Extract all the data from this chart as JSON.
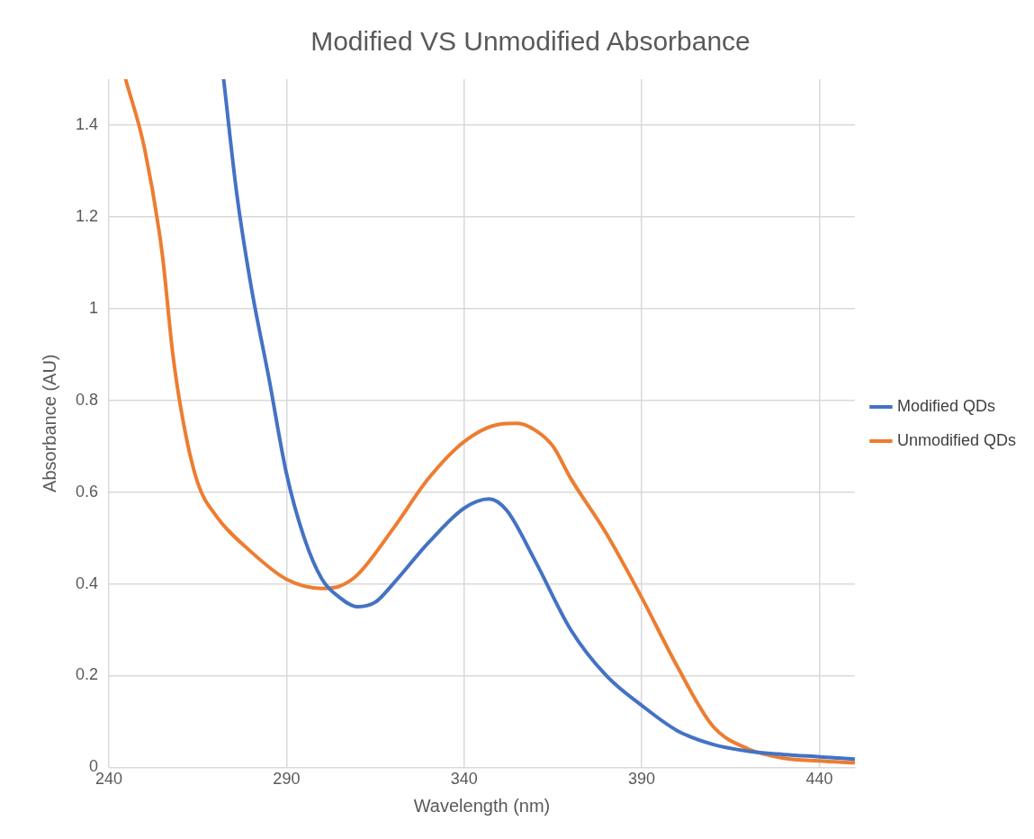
{
  "chart_data": {
    "type": "line",
    "title": "Modified VS Unmodified Absorbance",
    "xlabel": "Wavelength (nm)",
    "ylabel": "Absorbance (AU)",
    "xlim": [
      240,
      450
    ],
    "xticks": [
      240,
      290,
      340,
      390,
      440
    ],
    "ylim": [
      0,
      1.5
    ],
    "yticks": [
      0,
      0.2,
      0.4,
      0.6,
      0.8,
      1,
      1.2,
      1.4
    ],
    "grid": true,
    "legend": "right",
    "marker": "none",
    "line_style": "solid",
    "series": [
      {
        "name": "Modified QDs",
        "color": "#4472c4",
        "x": [
          272.3,
          276,
          280,
          285,
          290,
          295,
          300,
          305,
          310,
          315,
          320,
          330,
          340,
          347,
          352,
          360,
          370,
          380,
          390,
          400,
          410,
          420,
          430,
          440,
          450
        ],
        "values": [
          1.5,
          1.25,
          1.05,
          0.85,
          0.64,
          0.5,
          0.41,
          0.37,
          0.35,
          0.36,
          0.4,
          0.49,
          0.565,
          0.585,
          0.56,
          0.45,
          0.3,
          0.2,
          0.135,
          0.08,
          0.05,
          0.035,
          0.028,
          0.023,
          0.018
        ]
      },
      {
        "name": "Unmodified QDs",
        "color": "#ed7d31",
        "x": [
          244.7,
          250,
          255,
          258,
          261,
          265,
          270,
          280,
          290,
          300,
          305,
          310,
          320,
          330,
          340,
          350,
          355,
          360,
          365,
          370,
          380,
          390,
          400,
          410,
          420,
          430,
          440,
          450
        ],
        "values": [
          1.5,
          1.35,
          1.12,
          0.9,
          0.75,
          0.62,
          0.55,
          0.47,
          0.41,
          0.39,
          0.395,
          0.42,
          0.52,
          0.63,
          0.71,
          0.748,
          0.75,
          0.735,
          0.7,
          0.63,
          0.51,
          0.37,
          0.22,
          0.09,
          0.04,
          0.02,
          0.014,
          0.01
        ]
      }
    ]
  }
}
